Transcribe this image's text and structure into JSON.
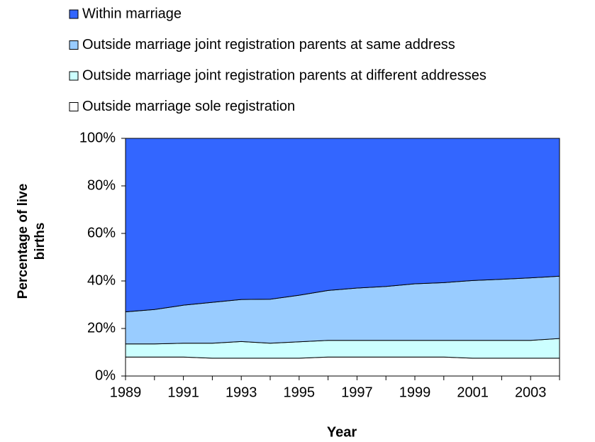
{
  "chart_data": {
    "type": "stacked-area",
    "x_label": "Year",
    "y_label": "Percentage of live births",
    "categories": [
      "1989",
      null,
      "1991",
      null,
      "1993",
      null,
      "1995",
      null,
      "1997",
      null,
      "1999",
      null,
      "2001",
      null,
      "2003",
      null
    ],
    "series": [
      {
        "name": "Within marriage",
        "color": "#3366ff",
        "values": [
          73,
          72,
          70.2,
          69,
          67.8,
          67.7,
          66,
          64,
          63,
          62.3,
          61.2,
          60.7,
          59.8,
          59.3,
          58.7,
          58
        ]
      },
      {
        "name": "Outside marriage joint registration parents at same address",
        "color": "#99ccff",
        "values": [
          13.5,
          14.5,
          16,
          17.2,
          17.7,
          18.5,
          19.6,
          21,
          22,
          22.7,
          23.8,
          24.3,
          25.2,
          25.7,
          26.3,
          26.2
        ]
      },
      {
        "name": "Outside marriage joint registration parents at different addresses",
        "color": "#ccffff",
        "values": [
          5.5,
          5.5,
          5.8,
          6.3,
          7,
          6.3,
          6.9,
          7,
          7,
          7,
          7,
          7,
          7.5,
          7.5,
          7.5,
          8.3
        ]
      },
      {
        "name": "Outside marriage sole registration",
        "color": "#ffffff",
        "values": [
          8,
          8,
          8,
          7.5,
          7.5,
          7.5,
          7.5,
          8,
          8,
          8,
          8,
          8,
          7.5,
          7.5,
          7.5,
          7.5
        ]
      }
    ],
    "ylim": [
      0,
      100
    ],
    "yticks": [
      {
        "value": 0,
        "label": "0%"
      },
      {
        "value": 20,
        "label": "20%"
      },
      {
        "value": 40,
        "label": "40%"
      },
      {
        "value": 60,
        "label": "60%"
      },
      {
        "value": 80,
        "label": "80%"
      },
      {
        "value": 100,
        "label": "100%"
      }
    ],
    "grid": false
  }
}
